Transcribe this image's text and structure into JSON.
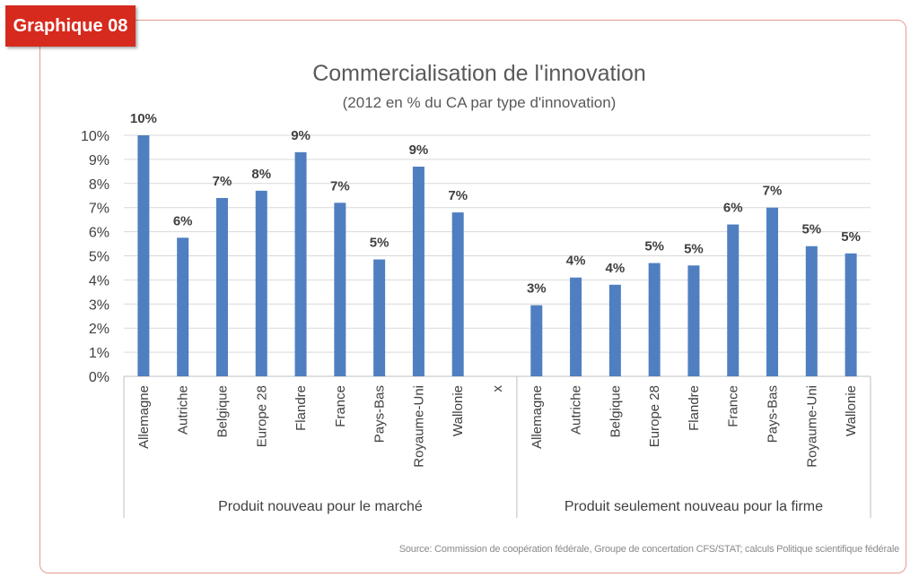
{
  "badge": "Graphique 08",
  "source": "Source: Commission de coopération fédérale, Groupe de concertation CFS/STAT; calculs Politique scientifique fédérale",
  "chart_data": {
    "type": "bar",
    "title": "Commercialisation de l'innovation",
    "subtitle": "(2012 en % du CA par type d'innovation)",
    "color": "#4f7fc0",
    "ylim": [
      0,
      10
    ],
    "yticks": [
      "0%",
      "1%",
      "2%",
      "3%",
      "4%",
      "5%",
      "6%",
      "7%",
      "8%",
      "9%",
      "10%"
    ],
    "grid": true,
    "categories": [
      "Allemagne",
      "Autriche",
      "Belgique",
      "Europe 28",
      "Flandre",
      "France",
      "Pays-Bas",
      "Royaume-Uni",
      "Wallonie",
      "x",
      "Allemagne",
      "Autriche",
      "Belgique",
      "Europe 28",
      "Flandre",
      "France",
      "Pays-Bas",
      "Royaume-Uni",
      "Wallonie"
    ],
    "values": [
      10.0,
      5.75,
      7.4,
      7.7,
      9.3,
      7.2,
      4.85,
      8.7,
      6.8,
      null,
      2.95,
      4.1,
      3.8,
      4.7,
      4.6,
      6.3,
      7.0,
      5.4,
      5.1
    ],
    "data_labels": [
      "10%",
      "6%",
      "7%",
      "8%",
      "9%",
      "7%",
      "5%",
      "9%",
      "7%",
      "",
      "3%",
      "4%",
      "4%",
      "5%",
      "5%",
      "6%",
      "7%",
      "5%",
      "5%"
    ],
    "groups": [
      {
        "label": "Produit nouveau pour le marché",
        "start": 0,
        "end": 9
      },
      {
        "label": "Produit seulement nouveau pour la firme",
        "start": 10,
        "end": 18
      }
    ]
  }
}
